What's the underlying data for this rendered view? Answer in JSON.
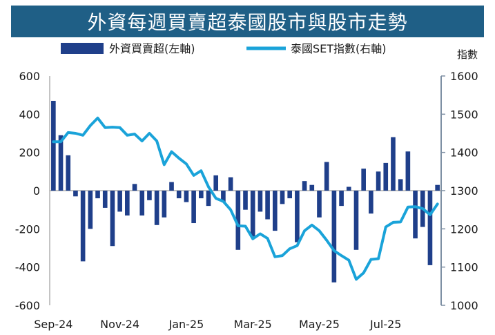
{
  "chart_data": {
    "type": "bar",
    "title": "外資每週買賣超泰國股市與股市走勢",
    "legend": [
      "外資買賣超(左軸)",
      "泰國SET指數(右軸)"
    ],
    "right_axis_title": "指數",
    "left_axis": {
      "ylim": [
        -600,
        600
      ],
      "ticks": [
        "600",
        "400",
        "200",
        "0",
        "-200",
        "-400",
        "-600"
      ]
    },
    "right_axis": {
      "ylim": [
        1000,
        1600
      ],
      "ticks": [
        "1600",
        "1500",
        "1400",
        "1300",
        "1200",
        "1100",
        "1000"
      ]
    },
    "x_tick_labels": [
      "Sep-24",
      "Nov-24",
      "Jan-25",
      "Mar-25",
      "May-25",
      "Jul-25"
    ],
    "x_tick_positions": [
      0,
      9,
      18,
      27,
      36,
      45
    ],
    "grid": false,
    "legend_position": "top",
    "series": [
      {
        "name": "外資買賣超(左軸)",
        "type": "bar",
        "axis": "left",
        "color": "#1f3f8a",
        "values": [
          470,
          290,
          185,
          -30,
          -370,
          -200,
          -40,
          -90,
          -290,
          -110,
          -130,
          35,
          -130,
          -50,
          -180,
          -140,
          45,
          -40,
          -60,
          -170,
          -40,
          -80,
          80,
          -60,
          70,
          -310,
          -100,
          -240,
          -110,
          -150,
          -210,
          -70,
          -40,
          -270,
          50,
          30,
          -140,
          150,
          -480,
          -80,
          20,
          -310,
          115,
          -120,
          100,
          145,
          280,
          60,
          205,
          -250,
          -190,
          -390,
          30
        ]
      },
      {
        "name": "泰國SET指數(右軸)",
        "type": "line",
        "axis": "right",
        "color": "#1aa3d9",
        "values": [
          1428,
          1428,
          1452,
          1450,
          1445,
          1470,
          1490,
          1465,
          1466,
          1465,
          1445,
          1448,
          1430,
          1450,
          1430,
          1368,
          1402,
          1385,
          1370,
          1340,
          1352,
          1310,
          1280,
          1272,
          1250,
          1208,
          1207,
          1174,
          1187,
          1175,
          1127,
          1130,
          1148,
          1156,
          1195,
          1210,
          1195,
          1170,
          1143,
          1130,
          1118,
          1068,
          1085,
          1120,
          1122,
          1205,
          1217,
          1218,
          1257,
          1258,
          1253,
          1237,
          1265
        ]
      }
    ]
  }
}
